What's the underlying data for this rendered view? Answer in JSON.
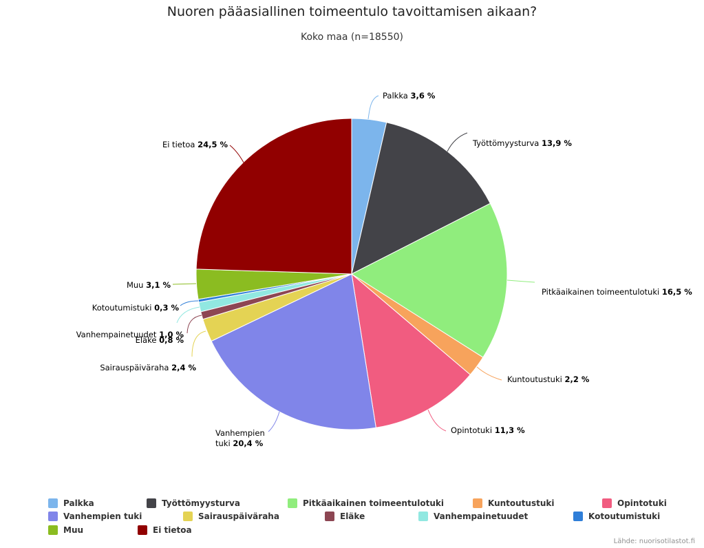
{
  "chart_data": {
    "type": "pie",
    "title": "Nuoren pääasiallinen toimeentulo tavoittamisen aikaan?",
    "subtitle": "Koko maa (n=18550)",
    "categories": [
      "Palkka",
      "Työttömyysturva",
      "Pitkäaikainen toimeentulotuki",
      "Kuntoutustuki",
      "Opintotuki",
      "Vanhempien tuki",
      "Sairauspäiväraha",
      "Eläke",
      "Vanhempainetuudet",
      "Kotoutumistuki",
      "Muu",
      "Ei tietoa"
    ],
    "values": [
      3.6,
      13.9,
      16.5,
      2.2,
      11.3,
      20.4,
      2.4,
      0.8,
      1.0,
      0.3,
      3.1,
      24.5
    ],
    "value_labels": [
      "3,6 %",
      "13,9 %",
      "16,5 %",
      "2,2 %",
      "11,3 %",
      "20,4 %",
      "2,4 %",
      "0,8 %",
      "1,0 %",
      "0,3 %",
      "3,1 %",
      "24,5 %"
    ],
    "colors": [
      "#7cb5ec",
      "#434348",
      "#90ed7d",
      "#f7a35c",
      "#f15c80",
      "#8085e9",
      "#e4d354",
      "#8d4653",
      "#91e8e1",
      "#2f7ed8",
      "#8bbc21",
      "#910000"
    ],
    "legend_position": "bottom"
  },
  "source": "Lähde: nuorisotilastot.fi"
}
